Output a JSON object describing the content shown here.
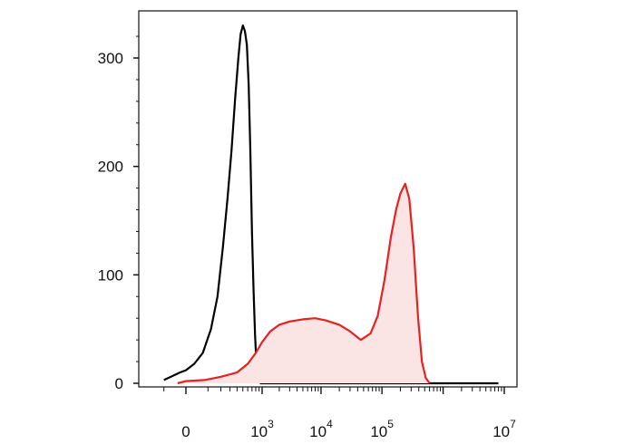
{
  "chart_data": {
    "type": "area",
    "title": "",
    "xlabel": "",
    "ylabel": "",
    "x_scale": "biexponential",
    "x_tick_labels": [
      {
        "value": 0,
        "base": "0",
        "exp": ""
      },
      {
        "value": 1000,
        "base": "10",
        "exp": "3"
      },
      {
        "value": 10000,
        "base": "10",
        "exp": "4"
      },
      {
        "value": 100000,
        "base": "10",
        "exp": "5"
      },
      {
        "value": 10000000,
        "base": "10",
        "exp": "7"
      }
    ],
    "y_ticks": [
      0,
      100,
      200,
      300
    ],
    "y_tick_labels": [
      "0",
      "100",
      "200",
      "300"
    ],
    "ylim": [
      0,
      335
    ],
    "grid": false,
    "legend": "none",
    "series": [
      {
        "color": "#000000",
        "fill": "none",
        "points": [
          [
            -100,
            3
          ],
          [
            -60,
            6
          ],
          [
            -20,
            10
          ],
          [
            0,
            12
          ],
          [
            30,
            18
          ],
          [
            70,
            28
          ],
          [
            120,
            50
          ],
          [
            170,
            80
          ],
          [
            220,
            125
          ],
          [
            270,
            170
          ],
          [
            320,
            215
          ],
          [
            370,
            262
          ],
          [
            420,
            300
          ],
          [
            460,
            322
          ],
          [
            500,
            330
          ],
          [
            540,
            325
          ],
          [
            580,
            312
          ],
          [
            620,
            275
          ],
          [
            660,
            215
          ],
          [
            700,
            140
          ],
          [
            740,
            85
          ],
          [
            780,
            45
          ],
          [
            820,
            18
          ],
          [
            860,
            6
          ],
          [
            900,
            2
          ],
          [
            950,
            0
          ],
          [
            1500,
            0
          ],
          [
            10000,
            0
          ],
          [
            100000,
            0
          ],
          [
            3000000,
            0
          ],
          [
            8000000,
            0
          ]
        ]
      },
      {
        "color": "#e8201f",
        "fill": "#fbe4e4",
        "points": [
          [
            -30,
            0
          ],
          [
            0,
            2
          ],
          [
            80,
            3
          ],
          [
            200,
            6
          ],
          [
            400,
            10
          ],
          [
            600,
            18
          ],
          [
            800,
            28
          ],
          [
            1000,
            38
          ],
          [
            1400,
            48
          ],
          [
            2000,
            54
          ],
          [
            3000,
            57
          ],
          [
            5000,
            59
          ],
          [
            8000,
            60
          ],
          [
            12000,
            58
          ],
          [
            20000,
            54
          ],
          [
            30000,
            48
          ],
          [
            45000,
            40
          ],
          [
            65000,
            46
          ],
          [
            85000,
            62
          ],
          [
            110000,
            95
          ],
          [
            140000,
            135
          ],
          [
            170000,
            160
          ],
          [
            200000,
            175
          ],
          [
            240000,
            184
          ],
          [
            280000,
            170
          ],
          [
            330000,
            125
          ],
          [
            390000,
            60
          ],
          [
            450000,
            20
          ],
          [
            520000,
            5
          ],
          [
            600000,
            0
          ]
        ]
      }
    ]
  }
}
